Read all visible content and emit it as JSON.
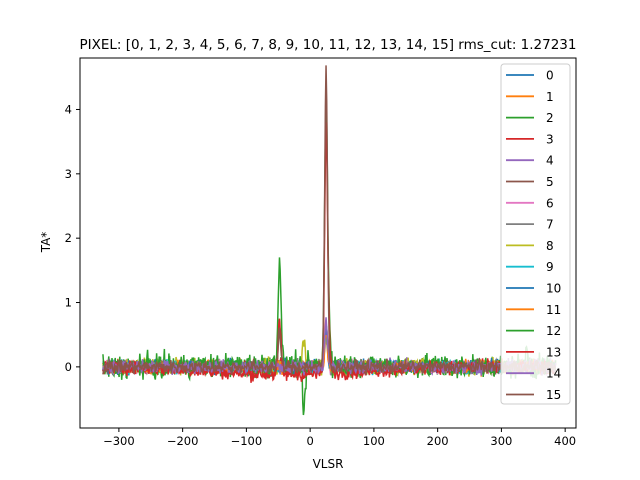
{
  "chart_data": {
    "type": "line",
    "title": "PIXEL: [0, 1, 2, 3, 4, 5, 6, 7, 8, 9, 10, 11, 12, 13, 14, 15]   rms_cut: 1.27231",
    "xlabel": "VLSR",
    "ylabel": "TA*",
    "xlim": [
      -361,
      417
    ],
    "ylim": [
      -0.95,
      4.8
    ],
    "x_ticks": [
      -300,
      -200,
      -100,
      0,
      100,
      200,
      300,
      400
    ],
    "y_ticks": [
      0,
      1,
      2,
      3,
      4
    ],
    "x_tick_labels": [
      "−300",
      "−200",
      "−100",
      "0",
      "100",
      "200",
      "300",
      "400"
    ],
    "y_tick_labels": [
      "0",
      "1",
      "2",
      "3",
      "4"
    ],
    "x_range": [
      -325,
      385
    ],
    "grid": false,
    "legend_position": "top-right",
    "colors": {
      "c0": "#1f77b4",
      "c1": "#ff7f0e",
      "c2": "#2ca02c",
      "c3": "#d62728",
      "c4": "#9467bd",
      "c5": "#8c564b",
      "c6": "#e377c2",
      "c7": "#7f7f7f",
      "c8": "#bcbd22",
      "c9": "#17becf"
    },
    "series": [
      {
        "name": "0",
        "color": "#1f77b4",
        "noise": 0.05,
        "offset": 0.0,
        "features": [
          {
            "x": 25,
            "y": 0.6
          }
        ]
      },
      {
        "name": "1",
        "color": "#ff7f0e",
        "noise": 0.05,
        "offset": 0.0,
        "features": [
          {
            "x": 25,
            "y": 0.5
          }
        ]
      },
      {
        "name": "2",
        "color": "#2ca02c",
        "noise": 0.07,
        "offset": 0.0,
        "features": [
          {
            "x": 25,
            "y": 0.7
          }
        ]
      },
      {
        "name": "3",
        "color": "#d62728",
        "noise": 0.05,
        "offset": 0.0,
        "features": [
          {
            "x": 25,
            "y": 0.6
          }
        ]
      },
      {
        "name": "4",
        "color": "#9467bd",
        "noise": 0.05,
        "offset": 0.0,
        "features": [
          {
            "x": 25,
            "y": 0.5
          }
        ]
      },
      {
        "name": "5",
        "color": "#8c564b",
        "noise": 0.05,
        "offset": 0.0,
        "features": [
          {
            "x": 25,
            "y": 0.6
          }
        ]
      },
      {
        "name": "6",
        "color": "#e377c2",
        "noise": 0.05,
        "offset": 0.0,
        "features": [
          {
            "x": 25,
            "y": 0.5
          }
        ]
      },
      {
        "name": "7",
        "color": "#7f7f7f",
        "noise": 0.05,
        "offset": 0.0,
        "features": [
          {
            "x": 25,
            "y": 0.6
          }
        ]
      },
      {
        "name": "8",
        "color": "#bcbd22",
        "noise": 0.06,
        "offset": 0.0,
        "features": [
          {
            "x": 25,
            "y": 0.5
          },
          {
            "x": -10,
            "y": 0.4
          }
        ]
      },
      {
        "name": "9",
        "color": "#17becf",
        "noise": 0.05,
        "offset": 0.0,
        "features": [
          {
            "x": 25,
            "y": 0.5
          }
        ]
      },
      {
        "name": "10",
        "color": "#1f77b4",
        "noise": 0.05,
        "offset": 0.0,
        "features": [
          {
            "x": 25,
            "y": 0.6
          }
        ]
      },
      {
        "name": "11",
        "color": "#ff7f0e",
        "noise": 0.05,
        "offset": 0.0,
        "features": [
          {
            "x": 25,
            "y": 0.5
          }
        ]
      },
      {
        "name": "12",
        "color": "#2ca02c",
        "noise": 0.09,
        "offset": 0.03,
        "features": [
          {
            "x": 25,
            "y": 4.2
          },
          {
            "x": -48,
            "y": 1.68
          },
          {
            "x": -10,
            "y": -0.72
          },
          {
            "x": 30,
            "y": 0.6
          },
          {
            "x": 340,
            "y": 0.3
          }
        ]
      },
      {
        "name": "13",
        "color": "#d62728",
        "noise": 0.05,
        "offset": -0.12,
        "features": [
          {
            "x": 25,
            "y": 3.8
          },
          {
            "x": -48,
            "y": 0.82
          },
          {
            "x": 30,
            "y": 0.5
          }
        ]
      },
      {
        "name": "14",
        "color": "#9467bd",
        "noise": 0.05,
        "offset": 0.0,
        "features": [
          {
            "x": 25,
            "y": 0.7
          }
        ]
      },
      {
        "name": "15",
        "color": "#8c564b",
        "noise": 0.05,
        "offset": 0.0,
        "features": [
          {
            "x": 25,
            "y": 4.6
          },
          {
            "x": -48,
            "y": 0.5
          }
        ]
      }
    ]
  }
}
